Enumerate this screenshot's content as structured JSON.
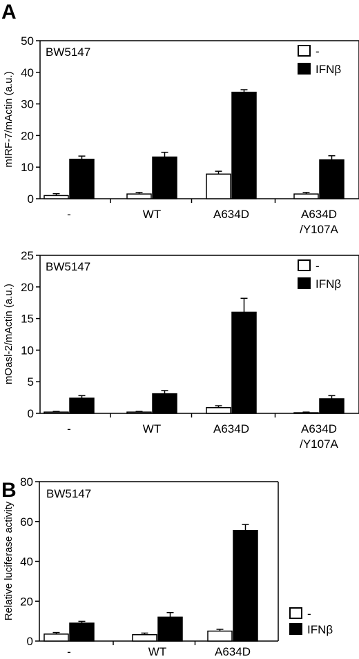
{
  "panels": [
    {
      "letter": "A"
    },
    {
      "letter": "B"
    }
  ],
  "colors": {
    "untreated_fill": "#ffffff",
    "ifnb_fill": "#000000",
    "stroke": "#000000"
  },
  "chart_data": [
    {
      "type": "bar",
      "panel": "A",
      "cell_label": "BW5147",
      "ylabel": "mIRF-7/mActin (a.u.)",
      "ylim": [
        0,
        50
      ],
      "yticks": [
        0,
        10,
        20,
        30,
        40,
        50
      ],
      "categories": [
        "-",
        "WT",
        "A634D",
        "A634D/Y107A"
      ],
      "category_lines": [
        [
          "-"
        ],
        [
          "WT"
        ],
        [
          "A634D"
        ],
        [
          "A634D",
          "/Y107A"
        ]
      ],
      "series": [
        {
          "name": "-",
          "values": [
            1.0,
            1.5,
            7.8,
            1.5
          ],
          "errors": [
            0.6,
            0.5,
            0.9,
            0.5
          ],
          "fill": "#ffffff"
        },
        {
          "name": "IFNβ",
          "values": [
            12.5,
            13.2,
            33.7,
            12.3
          ],
          "errors": [
            1.0,
            1.5,
            0.8,
            1.3
          ],
          "fill": "#000000"
        }
      ],
      "legend": "top-right",
      "grid": false
    },
    {
      "type": "bar",
      "panel": "A",
      "cell_label": "BW5147",
      "ylabel": "mOasl-2/mActin (a.u.)",
      "ylim": [
        0,
        25
      ],
      "yticks": [
        0,
        5,
        10,
        15,
        20,
        25
      ],
      "categories": [
        "-",
        "WT",
        "A634D",
        "A634D/Y107A"
      ],
      "category_lines": [
        [
          "-"
        ],
        [
          "WT"
        ],
        [
          "A634D"
        ],
        [
          "A634D",
          "/Y107A"
        ]
      ],
      "series": [
        {
          "name": "-",
          "values": [
            0.2,
            0.2,
            0.9,
            0.1
          ],
          "errors": [
            0.1,
            0.1,
            0.3,
            0.1
          ],
          "fill": "#ffffff"
        },
        {
          "name": "IFNβ",
          "values": [
            2.4,
            3.1,
            16.0,
            2.3
          ],
          "errors": [
            0.4,
            0.5,
            2.2,
            0.5
          ],
          "fill": "#000000"
        }
      ],
      "legend": "top-right",
      "grid": false
    },
    {
      "type": "bar",
      "panel": "B",
      "cell_label": "BW5147",
      "ylabel": "Relative luciferase activity",
      "ylim": [
        0,
        80
      ],
      "yticks": [
        0,
        20,
        40,
        60,
        80
      ],
      "categories": [
        "-",
        "WT",
        "A634D"
      ],
      "category_lines": [
        [
          "-"
        ],
        [
          "WT"
        ],
        [
          "A634D"
        ]
      ],
      "series": [
        {
          "name": "-",
          "values": [
            3.5,
            3.2,
            5.0
          ],
          "errors": [
            0.8,
            0.8,
            0.9
          ],
          "fill": "#ffffff"
        },
        {
          "name": "IFNβ",
          "values": [
            9.0,
            12.0,
            55.5
          ],
          "errors": [
            0.9,
            2.3,
            3.0
          ],
          "fill": "#000000"
        }
      ],
      "legend": "outside-bottom-right",
      "grid": false
    }
  ]
}
